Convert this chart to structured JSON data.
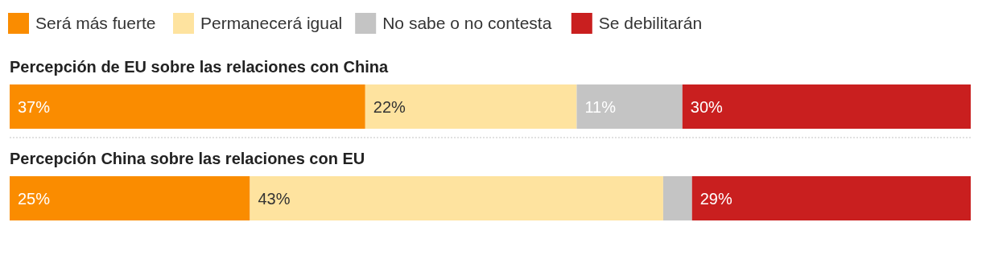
{
  "chart_data": {
    "type": "bar",
    "orientation": "horizontal",
    "stacked": true,
    "categories": [
      "Percepción de EU sobre las relaciones con China",
      "Percepción China sobre las relaciones con EU"
    ],
    "xlim": [
      0,
      100
    ],
    "legend": "top left",
    "series": [
      {
        "name": "Será más fuerte",
        "color": "#fa8c00",
        "values": [
          37,
          25
        ],
        "value_labels": [
          "37%",
          "25%"
        ]
      },
      {
        "name": "Permanecerá igual",
        "color": "#fee39f",
        "values": [
          22,
          43
        ],
        "value_labels": [
          "22%",
          "43%"
        ]
      },
      {
        "name": "No sabe o no contesta",
        "color": "#c4c4c4",
        "values": [
          11,
          3
        ],
        "value_labels": [
          "11%",
          null
        ]
      },
      {
        "name": "Se debilitarán",
        "color": "#c91f1f",
        "values": [
          30,
          29
        ],
        "value_labels": [
          "30%",
          "29%"
        ]
      }
    ]
  }
}
